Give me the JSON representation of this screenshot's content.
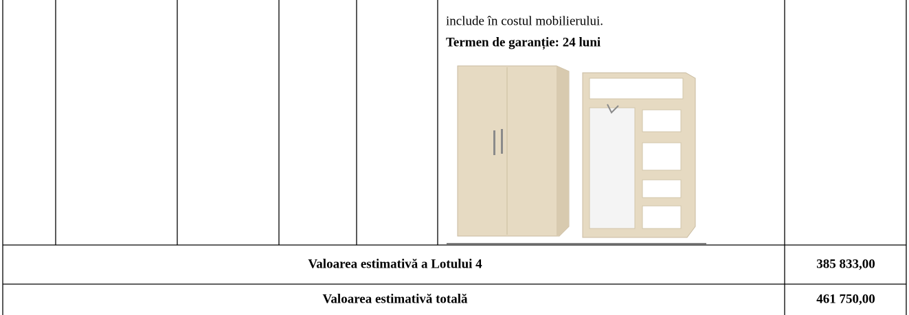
{
  "table": {
    "description": [
      "include în costul mobilierului.",
      "Termen de garanție: 24 luni"
    ],
    "totals": [
      {
        "label": "Valoarea estimativă a Lotului 4",
        "value": "385 833,00"
      },
      {
        "label": "Valoarea estimativă totală",
        "value": "461 750,00"
      }
    ]
  }
}
